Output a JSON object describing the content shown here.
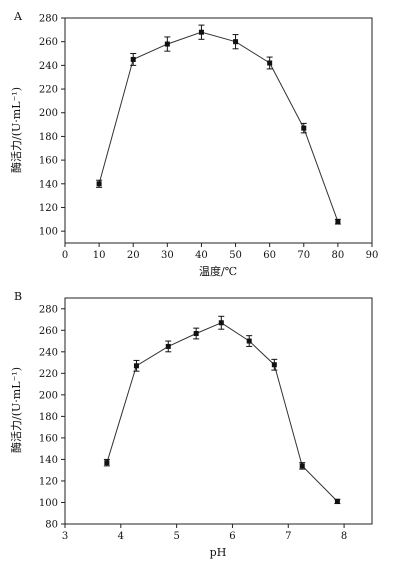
{
  "colors": {
    "axis": "#222222",
    "line": "#333333",
    "marker": "#111111"
  },
  "chart_data": [
    {
      "type": "line",
      "panel_label": "A",
      "xlabel": "温度/℃",
      "ylabel": "酶活力/(U·mL⁻¹)",
      "xlim": [
        0,
        90
      ],
      "ylim": [
        90,
        280
      ],
      "xticks": [
        0,
        10,
        20,
        30,
        40,
        50,
        60,
        70,
        80,
        90
      ],
      "yticks": [
        100,
        120,
        140,
        160,
        180,
        200,
        220,
        240,
        260,
        280
      ],
      "grid": false,
      "series": [
        {
          "x": [
            10,
            20,
            30,
            40,
            50,
            60,
            70,
            80
          ],
          "y": [
            140,
            245,
            258,
            268,
            260,
            242,
            187,
            108
          ],
          "err": [
            3,
            5,
            6,
            6,
            6,
            5,
            4,
            2
          ]
        }
      ]
    },
    {
      "type": "line",
      "panel_label": "B",
      "xlabel": "pH",
      "ylabel": "酶活力/(U·mL⁻¹)",
      "xlim": [
        3,
        8.5
      ],
      "ylim": [
        80,
        290
      ],
      "xticks": [
        3,
        4,
        5,
        6,
        7,
        8
      ],
      "yticks": [
        80,
        100,
        120,
        140,
        160,
        180,
        200,
        220,
        240,
        260,
        280
      ],
      "grid": false,
      "series": [
        {
          "x": [
            3.75,
            4.28,
            4.85,
            5.35,
            5.8,
            6.3,
            6.75,
            7.25,
            7.88
          ],
          "y": [
            137,
            227,
            245,
            257,
            267,
            250,
            228,
            134,
            101
          ],
          "err": [
            3,
            5,
            5,
            5,
            6,
            5,
            5,
            3,
            2
          ]
        }
      ]
    }
  ]
}
